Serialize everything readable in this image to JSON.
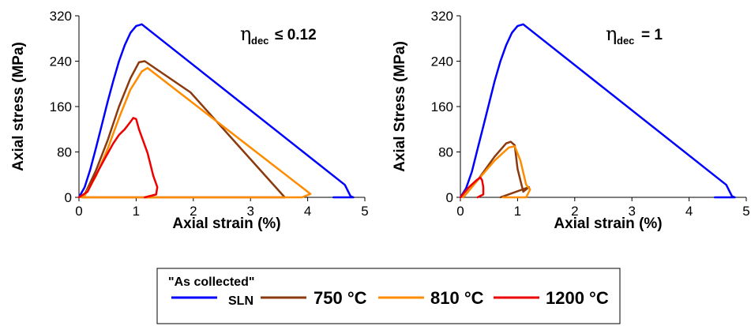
{
  "chart_data": [
    {
      "type": "line",
      "xlabel": "Axial strain (%)",
      "ylabel": "Axial stress (MPa)",
      "xlim": [
        0,
        5
      ],
      "ylim": [
        0,
        320
      ],
      "xticks": [
        "0",
        "1",
        "2",
        "3",
        "4",
        "5"
      ],
      "yticks": [
        "0",
        "80",
        "160",
        "240",
        "320"
      ],
      "annotation": {
        "symbol": "η",
        "subscript": "dec",
        "relation": "≤ 0.12"
      },
      "series": [
        {
          "name": "\"As collected\" SLN",
          "color": "#0000ff",
          "x": [
            0.0,
            0.1,
            0.2,
            0.3,
            0.4,
            0.5,
            0.6,
            0.7,
            0.8,
            0.9,
            1.0,
            1.1,
            4.65,
            4.75,
            4.8,
            4.45
          ],
          "y": [
            0,
            18,
            50,
            88,
            128,
            168,
            205,
            240,
            268,
            290,
            302,
            305,
            22,
            2,
            0,
            0
          ]
        },
        {
          "name": "750 °C",
          "color": "#8b3a0e",
          "x": [
            0.0,
            0.1,
            0.3,
            0.5,
            0.7,
            0.9,
            1.05,
            1.15,
            1.95,
            3.6,
            0.05
          ],
          "y": [
            0,
            5,
            48,
            100,
            160,
            210,
            238,
            240,
            185,
            0,
            0
          ]
        },
        {
          "name": "810 °C",
          "color": "#ff8c00",
          "x": [
            0.0,
            0.1,
            0.3,
            0.5,
            0.7,
            0.9,
            1.1,
            1.2,
            4.05,
            3.9,
            0.05
          ],
          "y": [
            0,
            3,
            38,
            85,
            140,
            190,
            222,
            228,
            6,
            0,
            0
          ]
        },
        {
          "name": "1200 °C",
          "color": "#ee0000",
          "x": [
            0.0,
            0.15,
            0.3,
            0.45,
            0.6,
            0.7,
            0.8,
            0.9,
            0.95,
            1.0,
            1.05,
            1.2,
            1.3,
            1.37,
            1.35,
            1.15
          ],
          "y": [
            0,
            10,
            40,
            68,
            95,
            110,
            120,
            133,
            140,
            138,
            120,
            78,
            38,
            18,
            5,
            0
          ]
        }
      ]
    },
    {
      "type": "line",
      "xlabel": "Axial strain (%)",
      "ylabel": "Axial Stress (MPa)",
      "xlim": [
        0,
        5
      ],
      "ylim": [
        0,
        320
      ],
      "xticks": [
        "0",
        "1",
        "2",
        "3",
        "4",
        "5"
      ],
      "yticks": [
        "0",
        "80",
        "160",
        "240",
        "320"
      ],
      "annotation": {
        "symbol": "η",
        "subscript": "dec",
        "relation": "=  1"
      },
      "series": [
        {
          "name": "\"As collected\" SLN",
          "color": "#0000ff",
          "x": [
            0.0,
            0.1,
            0.2,
            0.3,
            0.4,
            0.5,
            0.6,
            0.7,
            0.8,
            0.9,
            1.0,
            1.1,
            4.65,
            4.75,
            4.8,
            4.45
          ],
          "y": [
            0,
            16,
            45,
            85,
            125,
            165,
            205,
            240,
            268,
            290,
            302,
            305,
            22,
            2,
            0,
            0
          ]
        },
        {
          "name": "750 °C",
          "color": "#8b3a0e",
          "x": [
            0.05,
            0.3,
            0.6,
            0.8,
            0.88,
            0.95,
            1.0,
            1.1,
            1.2,
            0.7
          ],
          "y": [
            0,
            30,
            72,
            95,
            98,
            92,
            50,
            10,
            18,
            0
          ]
        },
        {
          "name": "810 °C",
          "color": "#ff8c00",
          "x": [
            0.05,
            0.3,
            0.6,
            0.85,
            0.95,
            1.05,
            1.15,
            1.22,
            1.15,
            0.75
          ],
          "y": [
            0,
            30,
            65,
            88,
            90,
            65,
            22,
            14,
            0,
            0
          ]
        },
        {
          "name": "1200 °C",
          "color": "#ee0000",
          "x": [
            0.0,
            0.15,
            0.28,
            0.35,
            0.38,
            0.4,
            0.4,
            0.3
          ],
          "y": [
            0,
            18,
            30,
            35,
            30,
            18,
            5,
            0
          ]
        }
      ]
    }
  ],
  "legend": {
    "entries": [
      {
        "line1": "\"As collected\"",
        "line2": "SLN",
        "color": "#0000ff"
      },
      {
        "label": "750 °C",
        "color": "#8b3a0e"
      },
      {
        "label": "810 °C",
        "color": "#ff8c00"
      },
      {
        "label": "1200 °C",
        "color": "#ee0000"
      }
    ]
  }
}
